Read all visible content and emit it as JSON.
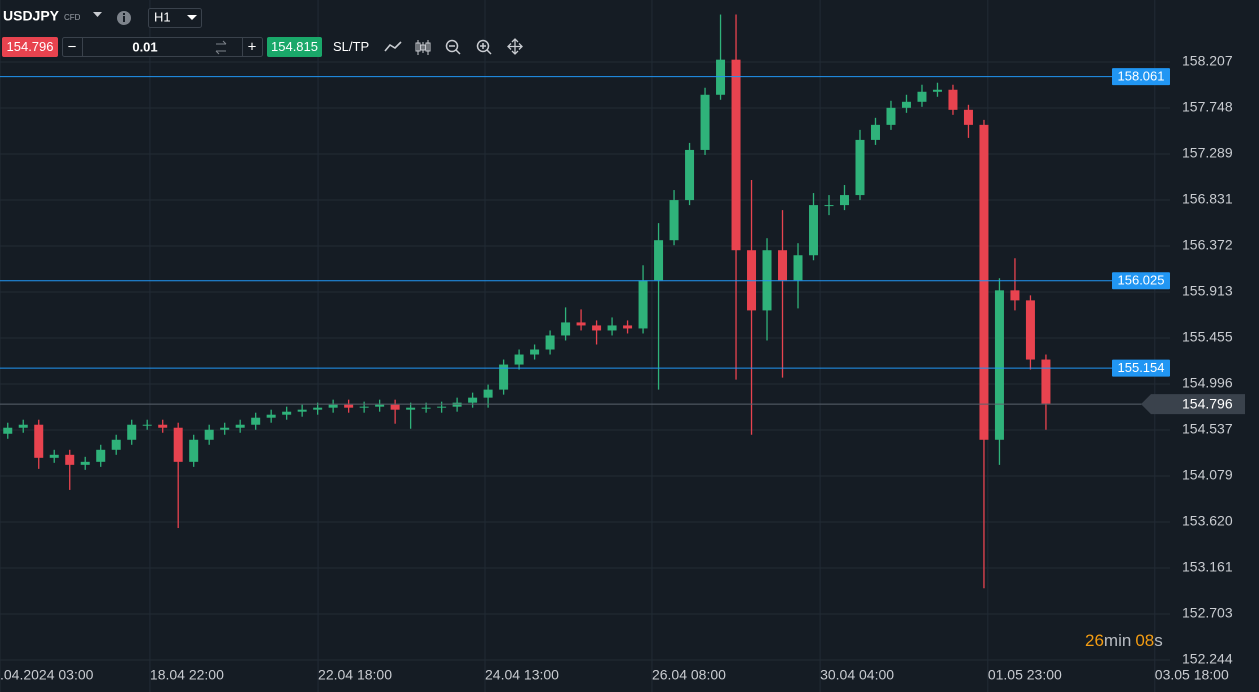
{
  "toolbar": {
    "symbol": "USDJPY",
    "symbol_kind": "CFD",
    "timeframe": "H1",
    "sell_price": 154.796,
    "volume": 0.01,
    "minus": "−",
    "plus": "+",
    "buy_price": 154.815,
    "sltp": "SL/TP"
  },
  "countdown": {
    "minutes": "26",
    "minutes_unit": "min",
    "seconds": "08",
    "seconds_unit": "s"
  },
  "chart_data": {
    "type": "candlestick",
    "x": [
      2,
      6,
      10,
      14,
      18,
      22,
      26,
      30,
      34,
      38,
      42,
      46,
      50,
      54,
      58,
      62,
      66,
      70,
      74,
      78,
      82,
      86,
      90,
      94,
      98,
      102,
      106,
      110,
      114,
      118,
      122,
      126,
      130,
      134,
      138,
      142,
      146,
      150,
      154,
      158,
      162,
      166,
      170,
      174,
      178,
      182,
      186,
      190,
      194,
      198,
      202,
      206,
      210,
      214,
      218,
      222,
      226,
      230,
      234,
      238,
      242,
      246,
      250,
      254,
      258,
      262,
      266,
      270
    ],
    "open": [
      154.5,
      154.56,
      154.59,
      154.26,
      154.29,
      154.19,
      154.22,
      154.34,
      154.44,
      154.59,
      154.59,
      154.56,
      154.22,
      154.44,
      154.54,
      154.56,
      154.59,
      154.66,
      154.69,
      154.72,
      154.74,
      154.76,
      154.79,
      154.76,
      154.77,
      154.79,
      154.74,
      154.76,
      154.76,
      154.77,
      154.81,
      154.86,
      154.94,
      155.19,
      155.29,
      155.34,
      155.48,
      155.61,
      155.58,
      155.53,
      155.58,
      155.55,
      156.03,
      156.43,
      156.83,
      157.33,
      157.88,
      158.23,
      156.33,
      155.73,
      156.33,
      156.03,
      156.28,
      156.78,
      156.78,
      156.88,
      157.43,
      157.58,
      157.75,
      157.81,
      157.91,
      157.93,
      157.73,
      157.58,
      154.44,
      155.93,
      155.83,
      155.24
    ],
    "high": [
      154.61,
      154.64,
      154.64,
      154.34,
      154.34,
      154.27,
      154.39,
      154.49,
      154.64,
      154.64,
      154.64,
      154.61,
      154.49,
      154.59,
      154.61,
      154.64,
      154.71,
      154.74,
      154.77,
      154.79,
      154.81,
      154.84,
      154.84,
      154.82,
      154.84,
      154.84,
      154.81,
      154.81,
      154.82,
      154.86,
      154.91,
      154.99,
      155.24,
      155.34,
      155.39,
      155.53,
      155.76,
      155.74,
      155.63,
      155.66,
      155.63,
      156.18,
      156.6,
      156.93,
      157.4,
      157.95,
      158.68,
      158.68,
      157.03,
      156.45,
      156.73,
      156.4,
      156.9,
      156.88,
      156.98,
      157.53,
      157.65,
      157.82,
      157.88,
      157.98,
      158.0,
      157.98,
      157.78,
      157.63,
      156.05,
      156.25,
      155.88,
      155.29
    ],
    "low": [
      154.45,
      154.51,
      154.15,
      154.21,
      153.94,
      154.14,
      154.17,
      154.29,
      154.39,
      154.54,
      154.51,
      153.56,
      154.17,
      154.39,
      154.49,
      154.51,
      154.54,
      154.61,
      154.64,
      154.67,
      154.69,
      154.71,
      154.71,
      154.71,
      154.72,
      154.6,
      154.55,
      154.71,
      154.71,
      154.72,
      154.76,
      154.76,
      154.89,
      155.14,
      155.24,
      155.29,
      155.43,
      155.53,
      155.39,
      155.48,
      155.5,
      155.5,
      154.94,
      156.38,
      156.78,
      157.28,
      157.83,
      155.04,
      154.49,
      155.43,
      155.06,
      155.75,
      156.23,
      156.68,
      156.73,
      156.83,
      157.38,
      157.53,
      157.7,
      157.76,
      157.86,
      157.68,
      157.45,
      152.96,
      154.19,
      155.73,
      155.14,
      154.54
    ],
    "close": [
      154.56,
      154.59,
      154.26,
      154.29,
      154.19,
      154.22,
      154.34,
      154.44,
      154.59,
      154.59,
      154.56,
      154.22,
      154.44,
      154.54,
      154.56,
      154.59,
      154.66,
      154.69,
      154.72,
      154.74,
      154.76,
      154.79,
      154.76,
      154.77,
      154.79,
      154.74,
      154.76,
      154.76,
      154.77,
      154.81,
      154.86,
      154.94,
      155.19,
      155.29,
      155.34,
      155.48,
      155.61,
      155.58,
      155.53,
      155.58,
      155.55,
      156.03,
      156.43,
      156.83,
      157.33,
      157.88,
      158.23,
      156.33,
      155.73,
      156.33,
      156.03,
      156.28,
      156.78,
      156.78,
      156.88,
      157.43,
      157.58,
      157.75,
      157.81,
      157.91,
      157.93,
      157.73,
      157.58,
      154.44,
      155.93,
      155.83,
      155.24,
      154.8
    ],
    "up_color": "#2fb27a",
    "down_color": "#e8434f",
    "xlim": [
      0,
      325
    ],
    "xticks": [
      {
        "value": 0,
        "label": ".04.2024 03:00"
      },
      {
        "value": 38.7,
        "label": "18.04 22:00"
      },
      {
        "value": 82.1,
        "label": "22.04 18:00"
      },
      {
        "value": 125.2,
        "label": "24.04 13:00"
      },
      {
        "value": 168.3,
        "label": "26.04 08:00"
      },
      {
        "value": 211.7,
        "label": "30.04 04:00"
      },
      {
        "value": 255.0,
        "label": "01.05 23:00"
      },
      {
        "value": 298.1,
        "label": "03.05 18:00"
      }
    ],
    "ylim": [
      151.925,
      158.825
    ],
    "yticks": [
      158.207,
      157.748,
      157.289,
      156.831,
      156.372,
      155.913,
      155.455,
      154.996,
      154.537,
      154.079,
      {
        "value": 153.62,
        "label": "153.620"
      },
      153.161,
      152.703,
      152.244
    ],
    "grid": true,
    "price_lines": [
      158.061,
      156.025,
      155.154
    ],
    "price_line_color": "#2196f3",
    "current_price": 154.796
  }
}
